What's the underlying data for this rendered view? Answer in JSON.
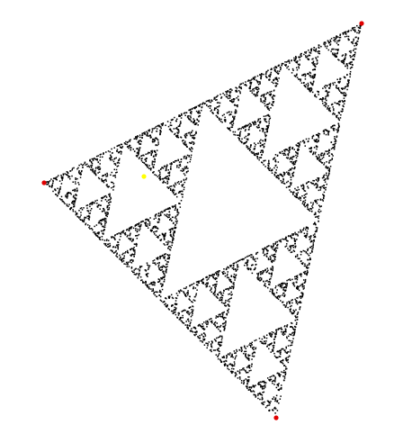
{
  "scene": {
    "kind": "chaos-game",
    "iterations": 5200,
    "jump_ratio": 0.5,
    "colors": {
      "background": "#ffffff",
      "points": "#000000",
      "vertex_markers": "#e00000",
      "current_point": "#ffff00"
    }
  }
}
